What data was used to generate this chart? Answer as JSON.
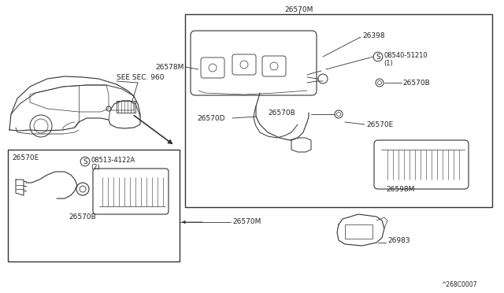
{
  "bg_color": "#ffffff",
  "lc": "#333333",
  "fig_width": 6.4,
  "fig_height": 3.72,
  "dpi": 100,
  "watermark": "^268C0007",
  "see_sec": "SEE SEC. 960",
  "labels": {
    "26570M_top": "26570M",
    "26570M_bot": "26570M",
    "26398": "26398",
    "26578M": "26578M",
    "26570B_a": "26570B",
    "26570B_b": "26570B",
    "26570D": "26570D",
    "26570E_r": "26570E",
    "26570E_l": "26570E",
    "08540": "08540-51210",
    "08540_1": "(1)",
    "08513": "08513-4122A",
    "08513_2": "(2)",
    "26598M": "26598M",
    "26983": "26983"
  }
}
